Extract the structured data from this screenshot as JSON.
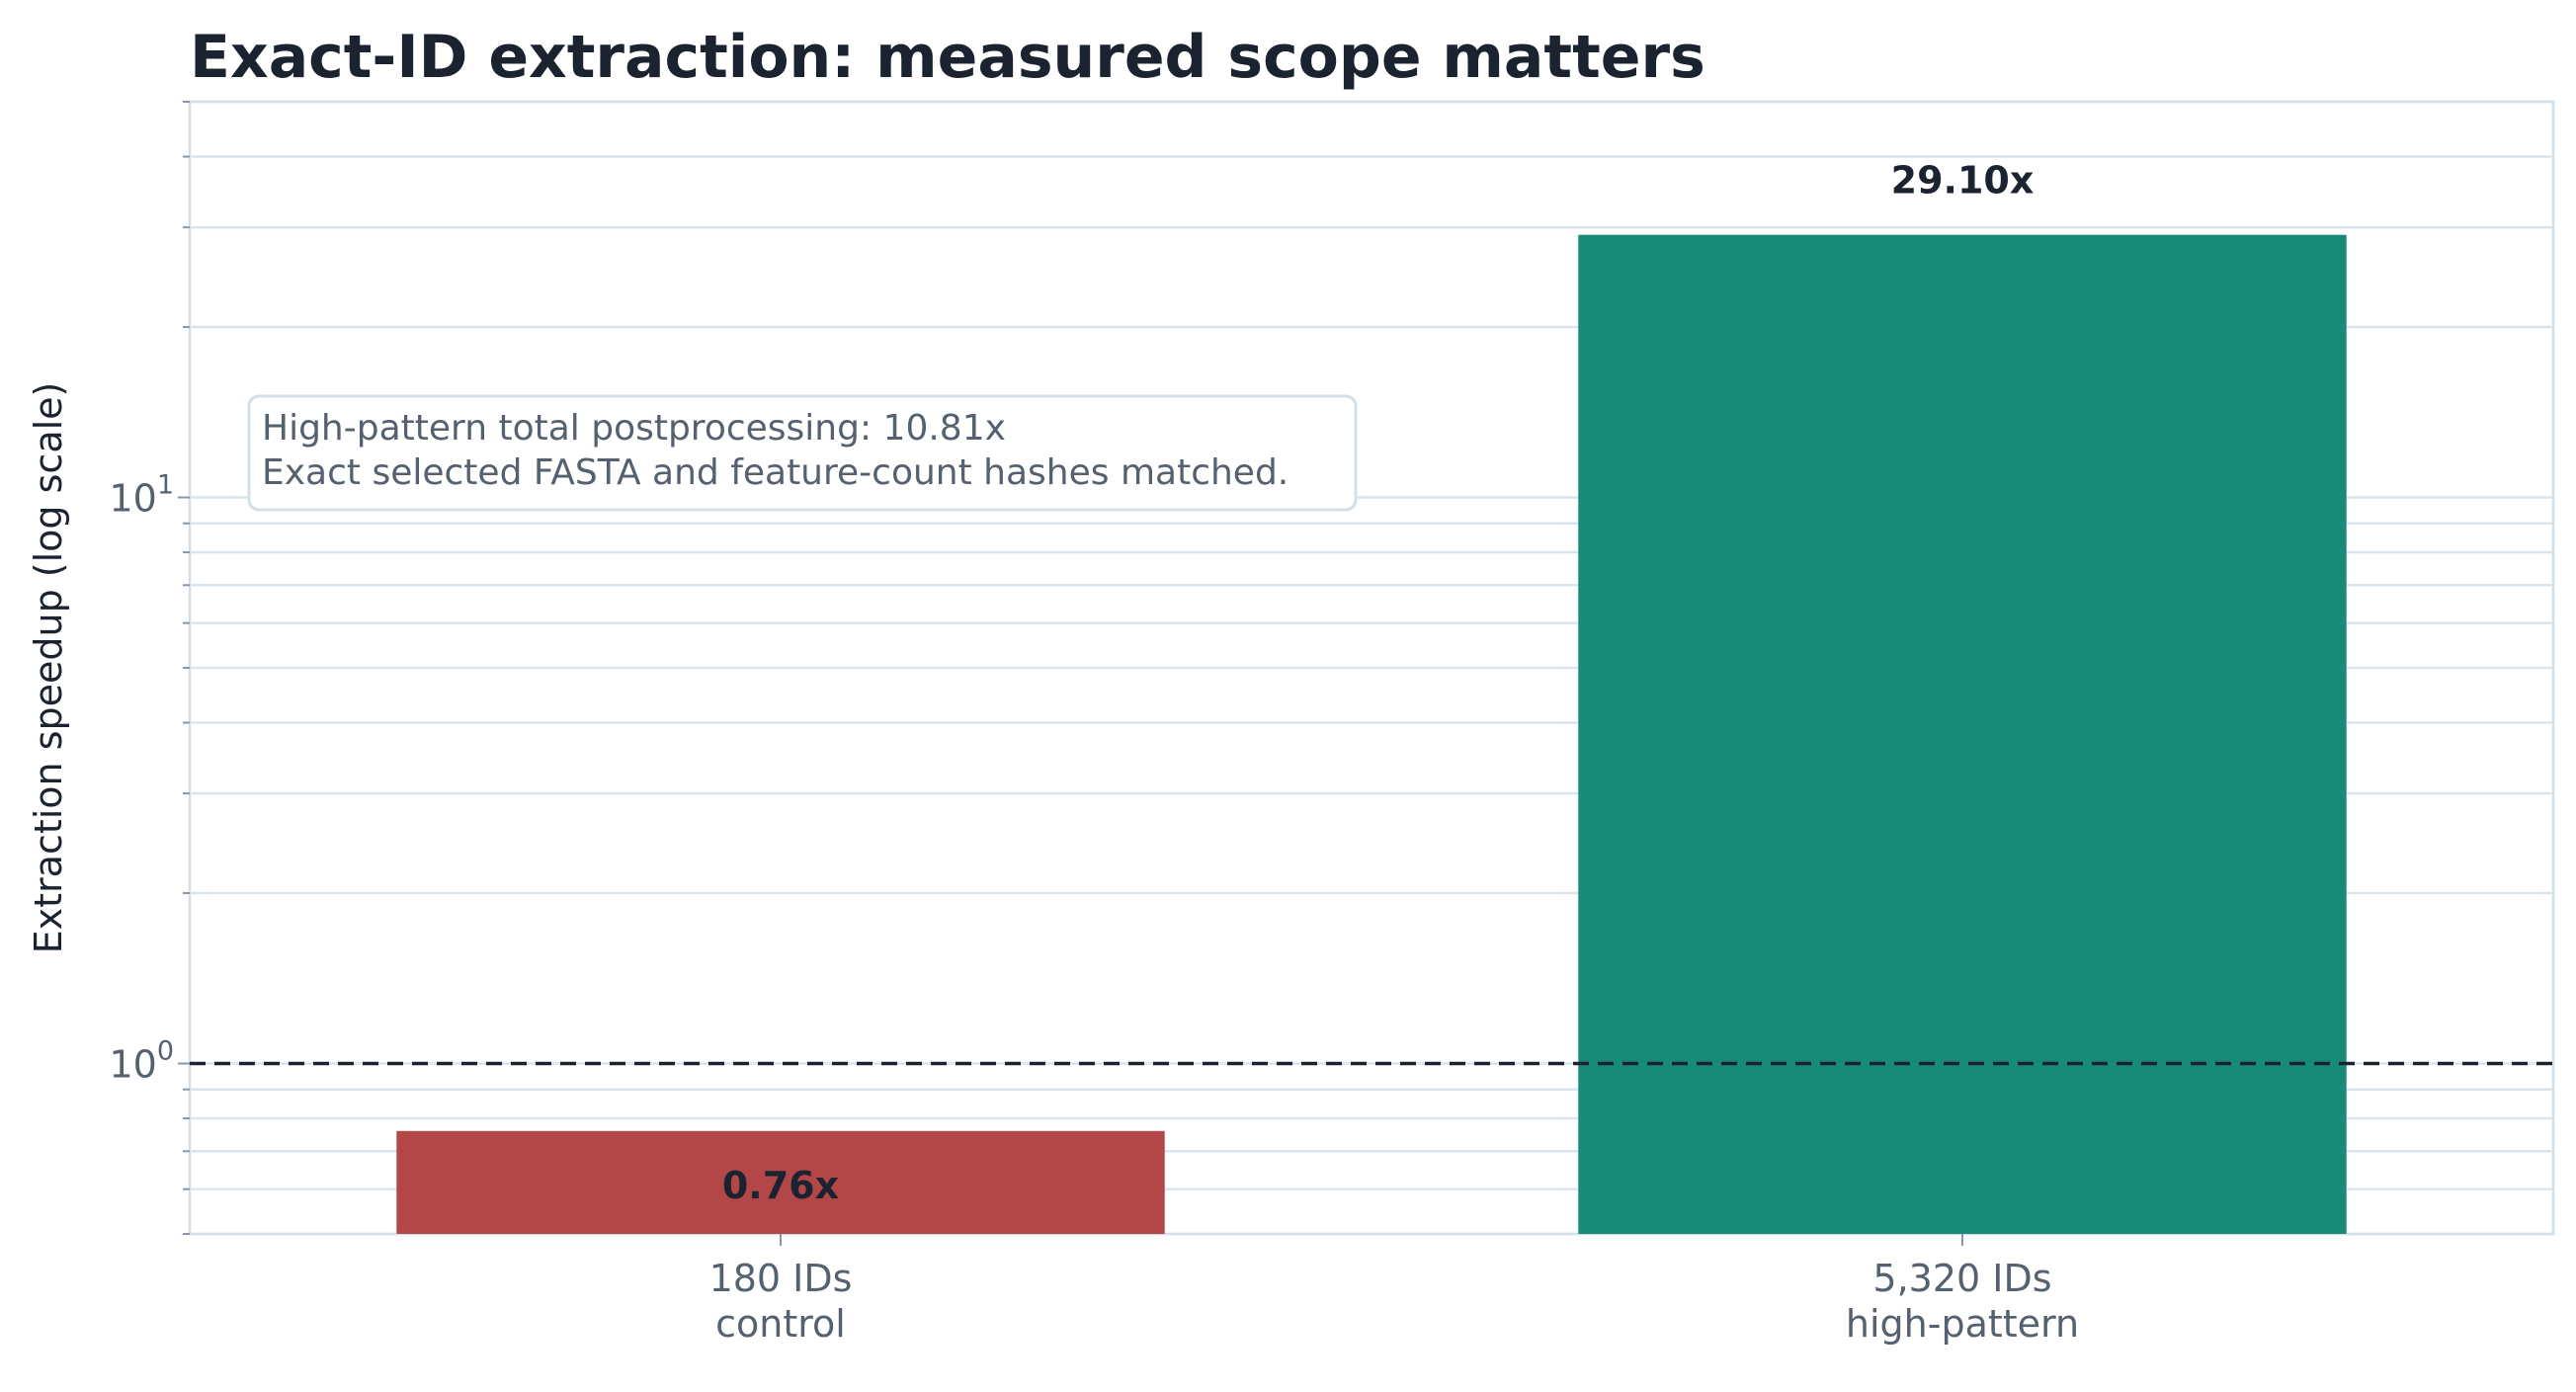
{
  "chart_data": {
    "type": "bar",
    "title": "Exact-ID extraction: measured scope matters",
    "ylabel": "Extraction speedup (log scale)",
    "xlabel": "",
    "yscale": "log",
    "ylim": [
      0.5,
      50
    ],
    "yticks": [
      {
        "base": "10",
        "exp": "0",
        "value": 1
      },
      {
        "base": "10",
        "exp": "1",
        "value": 10
      }
    ],
    "grid": true,
    "reference_line": {
      "value": 1,
      "style": "dashed",
      "color": "#1b2330"
    },
    "categories": [
      {
        "line1": "180 IDs",
        "line2": "control"
      },
      {
        "line1": "5,320 IDs",
        "line2": "high-pattern"
      }
    ],
    "values": [
      0.76,
      29.1
    ],
    "value_labels": [
      "0.76x",
      "29.10x"
    ],
    "colors": [
      "#b34747",
      "#178a78"
    ],
    "annotation": {
      "line1": "High-pattern total postprocessing: 10.81x",
      "line2": "Exact selected FASTA and feature-count hashes matched."
    }
  }
}
